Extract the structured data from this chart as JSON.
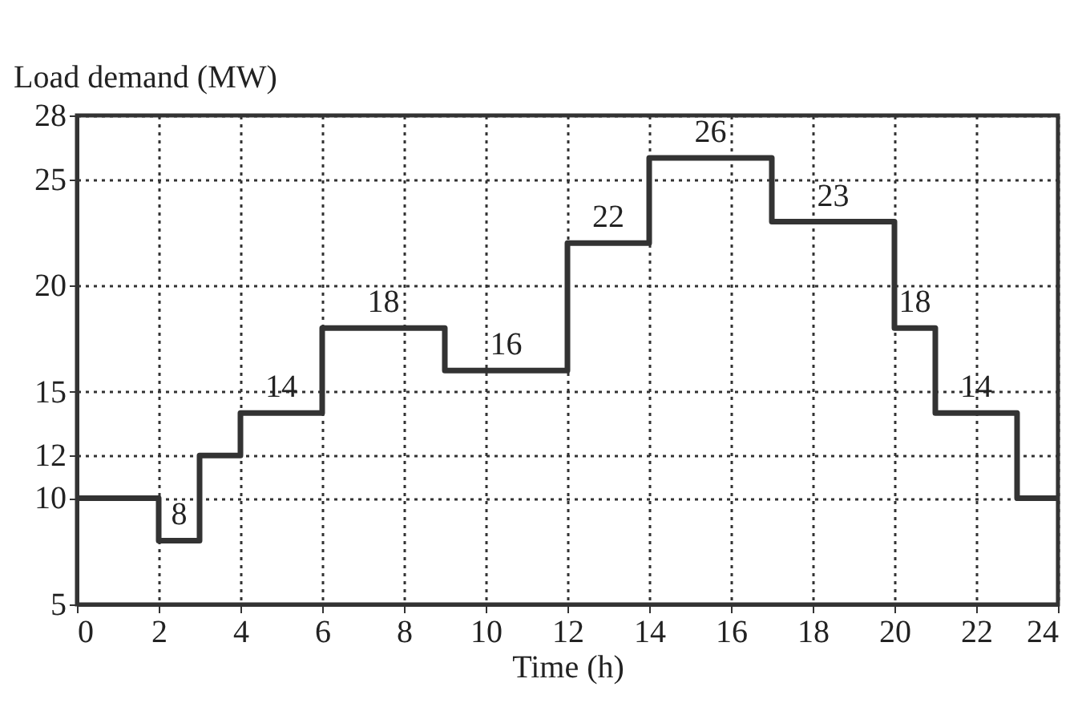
{
  "chart_data": {
    "type": "step",
    "ylabel": "Load demand (MW)",
    "xlabel": "Time (h)",
    "x": [
      0,
      2,
      3,
      4,
      6,
      9,
      12,
      14,
      17,
      20,
      21,
      23,
      24
    ],
    "series": [
      {
        "color": "#333333",
        "values": [
          10,
          8,
          12,
          14,
          18,
          16,
          22,
          26,
          23,
          18,
          14,
          10,
          10
        ]
      }
    ],
    "xlim": [
      0,
      24
    ],
    "xticks": [
      0,
      2,
      4,
      6,
      8,
      10,
      12,
      14,
      16,
      18,
      20,
      22,
      24
    ],
    "ylim": [
      5,
      28
    ],
    "yticks": [
      5,
      10,
      12,
      15,
      20,
      25,
      28
    ],
    "grid": true,
    "line_style": "solid",
    "annotations": [
      {
        "text": "8",
        "x": 2.5,
        "y": 8
      },
      {
        "text": "14",
        "x": 5,
        "y": 14
      },
      {
        "text": "18",
        "x": 7.5,
        "y": 18
      },
      {
        "text": "16",
        "x": 10.5,
        "y": 16
      },
      {
        "text": "22",
        "x": 13,
        "y": 22
      },
      {
        "text": "26",
        "x": 15.5,
        "y": 26
      },
      {
        "text": "23",
        "x": 18.5,
        "y": 23
      },
      {
        "text": "18",
        "x": 20.5,
        "y": 18
      },
      {
        "text": "14",
        "x": 22,
        "y": 14
      }
    ]
  }
}
